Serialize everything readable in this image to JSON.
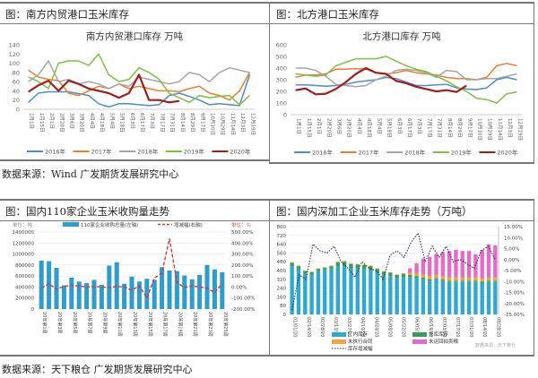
{
  "panels": {
    "south": {
      "header": "图：南方内贸港口玉米库存"
    },
    "north": {
      "header": "图：北方港口玉米库存"
    },
    "purchase": {
      "header": "图：国内110家企业玉米收购量走势"
    },
    "deep": {
      "header": "图：国内深加工企业玉米库存走势（万吨）"
    }
  },
  "sources": {
    "top": "数据来源：Wind 广发期货发展研究中心",
    "bottom": "数据来源：天下粮仓 广发期货发展研究中心"
  },
  "chart_data": [
    {
      "id": "south",
      "type": "line",
      "title": "南方内贸港口库存 万吨",
      "ylim": [
        0,
        140
      ],
      "yticks": [
        "0",
        "20",
        "40",
        "60",
        "80",
        "100",
        "120",
        "140"
      ],
      "categories": [
        "1月1日",
        "1月15日",
        "2月1日",
        "2月20日",
        "3月6日",
        "3月20日",
        "4月4日",
        "4月18日",
        "5月4日",
        "5月18日",
        "6月3日",
        "6月17日",
        "7月3日",
        "7月17日",
        "7月31日",
        "8月14日",
        "8月29日",
        "9月17日",
        "10月10日",
        "10月29日",
        "11月14日",
        "12月3日",
        "12月19日"
      ],
      "legend_position": "bottom",
      "series": [
        {
          "name": "2016年",
          "color": "#4a8fcc",
          "values": [
            15,
            35,
            38,
            38,
            38,
            34,
            30,
            12,
            5,
            12,
            12,
            10,
            8,
            10,
            30,
            35,
            28,
            20,
            10,
            12,
            10,
            8,
            75
          ]
        },
        {
          "name": "2017年",
          "color": "#ed7d31",
          "values": [
            85,
            70,
            65,
            62,
            35,
            30,
            40,
            50,
            45,
            55,
            45,
            50,
            45,
            40,
            40,
            38,
            45,
            50,
            35,
            30,
            20,
            40,
            80
          ]
        },
        {
          "name": "2018年",
          "color": "#a5a5a5",
          "values": [
            60,
            75,
            105,
            60,
            65,
            55,
            60,
            55,
            45,
            55,
            50,
            70,
            65,
            60,
            55,
            60,
            80,
            75,
            60,
            80,
            90,
            85,
            80
          ]
        },
        {
          "name": "2019年",
          "color": "#7cc142",
          "values": [
            70,
            60,
            45,
            100,
            105,
            105,
            95,
            120,
            75,
            60,
            65,
            90,
            80,
            65,
            35,
            25,
            15,
            30,
            25,
            28,
            30,
            10,
            30
          ]
        },
        {
          "name": "2020年",
          "color": "#a31c1c",
          "values": [
            38,
            52,
            62,
            40,
            62,
            55,
            45,
            40,
            35,
            25,
            35,
            75,
            20,
            20,
            15,
            18
          ]
        }
      ]
    },
    {
      "id": "north",
      "type": "line",
      "title": "北方港口库存 万吨",
      "ylim": [
        0,
        600
      ],
      "yticks": [
        "0",
        "100",
        "200",
        "300",
        "400",
        "500",
        "600"
      ],
      "categories": [
        "1月1日",
        "1月15日",
        "2月1日",
        "2月20日",
        "3月6日",
        "3月20日",
        "4月4日",
        "4月18日",
        "5月4日",
        "5月18日",
        "6月3日",
        "6月17日",
        "7月3日",
        "7月17日",
        "7月31日",
        "8月14日",
        "8月29日",
        "9月17日",
        "10月10日",
        "10月29日",
        "11月14日",
        "12月3日",
        "12月19日"
      ],
      "legend_position": "bottom",
      "series": [
        {
          "name": "2016年",
          "color": "#4a8fcc",
          "values": [
            255,
            255,
            250,
            245,
            250,
            260,
            280,
            290,
            300,
            320,
            310,
            280,
            250,
            250,
            255,
            260,
            230,
            220,
            215,
            230,
            300,
            320,
            300
          ]
        },
        {
          "name": "2017年",
          "color": "#ed7d31",
          "values": [
            320,
            340,
            340,
            350,
            390,
            390,
            395,
            390,
            360,
            350,
            360,
            380,
            360,
            350,
            340,
            320,
            310,
            310,
            300,
            320,
            420,
            440,
            420
          ]
        },
        {
          "name": "2018年",
          "color": "#a5a5a5",
          "values": [
            400,
            400,
            380,
            330,
            260,
            250,
            240,
            250,
            300,
            330,
            380,
            390,
            380,
            360,
            320,
            380,
            370,
            300,
            300,
            310,
            310,
            330,
            350
          ]
        },
        {
          "name": "2019年",
          "color": "#7cc142",
          "values": [
            350,
            340,
            330,
            340,
            420,
            450,
            480,
            480,
            480,
            500,
            460,
            420,
            390,
            370,
            330,
            290,
            240,
            200,
            140,
            130,
            100,
            180,
            195
          ]
        },
        {
          "name": "2020年",
          "color": "#a31c1c",
          "values": [
            210,
            225,
            175,
            180,
            220,
            280,
            350,
            400,
            360,
            350,
            290,
            270,
            240,
            220,
            200,
            210,
            195,
            250
          ]
        }
      ]
    },
    {
      "id": "purchase",
      "type": "bar",
      "unit_left": "单位：吨",
      "unit_right": "单位：%",
      "legend": [
        "110家企业收购总量(左轴)",
        "增减幅(右轴)"
      ],
      "legend_position": "top",
      "ylim": [
        0,
        1400000
      ],
      "yticks": [
        "0",
        "200000",
        "400000",
        "600000",
        "800000",
        "1000000",
        "1200000",
        "1400000"
      ],
      "y2lim": [
        -200,
        500
      ],
      "y2ticks": [
        "-200.00%",
        "-100.00%",
        "0.00%",
        "100.00%",
        "200.00%",
        "300.00%",
        "400.00%",
        "500.00%"
      ],
      "categories": [
        "20年第1周",
        "20年第3周",
        "20年第5周",
        "20年第7周",
        "20年第9周",
        "20年第11周",
        "20年第13周",
        "20年第15周",
        "20年第17周",
        "20年第19周",
        "20年第21周",
        "20年第23周",
        "20年第25周"
      ],
      "series": [
        {
          "name": "110家企业收购总量(左轴)",
          "color": "#2e9ccc",
          "values": [
            880000,
            870000,
            750000,
            430000,
            570000,
            500000,
            470000,
            530000,
            440000,
            790000,
            850000,
            460000,
            590000,
            500000,
            550000,
            530000,
            760000,
            700000,
            690000,
            610000,
            540000,
            620000,
            800000,
            720000,
            670000
          ]
        },
        {
          "name": "增减幅(右轴)",
          "color": "#d33a3a",
          "values": [
            -10,
            30,
            -20,
            5,
            15,
            10,
            0,
            5,
            0,
            -5,
            5,
            0,
            -30,
            10,
            -100,
            80,
            130,
            440,
            40,
            -5,
            10,
            0,
            -10,
            -50,
            30
          ]
        }
      ]
    },
    {
      "id": "deep",
      "type": "bar",
      "ylim": [
        0,
        800
      ],
      "yticks": [
        "0",
        "80",
        "160",
        "240",
        "320",
        "400",
        "480",
        "560",
        "640",
        "720",
        "800"
      ],
      "y2lim": [
        -25,
        15
      ],
      "y2ticks": [
        "-25.00%",
        "-20.00%",
        "-15.00%",
        "-10.00%",
        "-5.00%",
        "0.00%",
        "5.00%",
        "10.00%",
        "15.00%"
      ],
      "categories": [
        "01/01/20",
        "02/14/20",
        "02/28/20",
        "03/13/20",
        "03/27/20",
        "04/10/20",
        "04/24/20",
        "05/08/20",
        "05/22/20",
        "06/05/20",
        "06/19/20",
        "07/03/20",
        "07/17/20",
        "07/31/20",
        "08/14/20",
        "08/28/20"
      ],
      "legend": [
        "厂内库存",
        "外库库存",
        "未执行合同",
        "未运回拍卖粮",
        "库存增减幅"
      ],
      "source_note": "数据来源：天下粮仓",
      "series": [
        {
          "name": "厂内库存",
          "color": "#2ea9d2",
          "values": [
            440,
            410,
            370,
            360,
            400,
            410,
            420,
            440,
            440,
            420,
            420,
            410,
            400,
            380,
            360,
            350,
            330,
            340,
            340,
            330,
            320,
            310,
            320,
            310,
            300,
            300,
            300,
            300,
            300,
            290,
            300,
            300
          ]
        },
        {
          "name": "外库库存",
          "color": "#3a9c5a",
          "values": [
            30,
            30,
            25,
            25,
            15,
            15,
            20,
            35,
            40,
            40,
            35,
            40,
            40,
            35,
            30,
            30,
            30,
            30,
            20,
            20,
            15,
            10,
            10,
            8,
            8,
            8,
            8,
            8,
            8,
            8,
            8,
            8
          ]
        },
        {
          "name": "未执行合同",
          "color": "#f2a33a",
          "values": [
            5,
            5,
            5,
            5,
            5,
            5,
            5,
            8,
            8,
            5,
            5,
            5,
            5,
            5,
            5,
            5,
            5,
            5,
            20,
            25,
            25,
            30,
            30,
            30,
            30,
            30,
            30,
            30,
            30,
            30,
            30,
            30
          ]
        },
        {
          "name": "未运回拍卖粮",
          "color": "#e66ac8",
          "values": [
            0,
            0,
            0,
            0,
            0,
            0,
            0,
            0,
            0,
            0,
            0,
            0,
            0,
            0,
            0,
            0,
            0,
            0,
            40,
            90,
            150,
            175,
            190,
            220,
            240,
            250,
            240,
            240,
            210,
            260,
            300,
            290
          ]
        },
        {
          "name": "库存增减幅",
          "color": "#1f2a55",
          "values": [
            -23,
            -7,
            -9,
            7,
            4,
            3,
            6,
            -1,
            -4,
            -8,
            -1,
            -4,
            -5,
            -9,
            2,
            4,
            1,
            8,
            12,
            -1,
            6,
            1,
            6,
            -1,
            0,
            -2,
            -4,
            4,
            6,
            0
          ]
        }
      ]
    }
  ]
}
